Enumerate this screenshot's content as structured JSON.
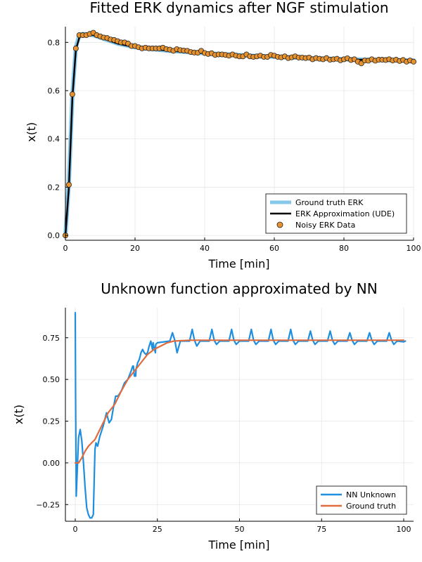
{
  "chart_data": [
    {
      "type": "line",
      "title": "Fitted ERK dynamics after NGF stimulation",
      "xlabel": "Time [min]",
      "ylabel": "x(t)",
      "xlim": [
        0,
        100
      ],
      "ylim": [
        -0.02,
        0.865
      ],
      "xticks": [
        0,
        20,
        40,
        60,
        80,
        100
      ],
      "yticks": [
        0.0,
        0.2,
        0.4,
        0.6,
        0.8
      ],
      "xtick_labels": [
        "0",
        "20",
        "40",
        "60",
        "80",
        "100"
      ],
      "ytick_labels": [
        "0.0",
        "0.2",
        "0.4",
        "0.6",
        "0.8"
      ],
      "grid": true,
      "legend_position": "bottom-right",
      "series": [
        {
          "name": "Ground truth ERK",
          "kind": "line",
          "color": "#87c8ea",
          "x": [
            0,
            1,
            2,
            3,
            4,
            5,
            6,
            8,
            10,
            12,
            15,
            20,
            25,
            30,
            40,
            50,
            60,
            70,
            80,
            90,
            100
          ],
          "y": [
            0.0,
            0.22,
            0.58,
            0.78,
            0.83,
            0.835,
            0.833,
            0.83,
            0.82,
            0.81,
            0.795,
            0.78,
            0.772,
            0.765,
            0.755,
            0.747,
            0.74,
            0.735,
            0.73,
            0.727,
            0.725
          ]
        },
        {
          "name": "ERK Approximation (UDE)",
          "kind": "line",
          "color": "#000000",
          "x": [
            0,
            1,
            2,
            3,
            4,
            5,
            6,
            8,
            10,
            12,
            15,
            20,
            25,
            30,
            40,
            50,
            60,
            70,
            80,
            90,
            100
          ],
          "y": [
            0.0,
            0.2,
            0.57,
            0.77,
            0.82,
            0.83,
            0.833,
            0.83,
            0.82,
            0.81,
            0.795,
            0.78,
            0.772,
            0.765,
            0.755,
            0.747,
            0.74,
            0.735,
            0.73,
            0.727,
            0.725
          ]
        },
        {
          "name": "Noisy ERK Data",
          "kind": "scatter",
          "color": "#e8922e",
          "x": [
            0,
            1,
            2,
            3,
            4,
            5,
            6,
            7,
            8,
            9,
            10,
            11,
            12,
            13,
            14,
            15,
            16,
            17,
            18,
            19,
            20,
            21,
            22,
            23,
            24,
            25,
            26,
            27,
            28,
            29,
            30,
            31,
            32,
            33,
            34,
            35,
            36,
            37,
            38,
            39,
            40,
            41,
            42,
            43,
            44,
            45,
            46,
            47,
            48,
            49,
            50,
            51,
            52,
            53,
            54,
            55,
            56,
            57,
            58,
            59,
            60,
            61,
            62,
            63,
            64,
            65,
            66,
            67,
            68,
            69,
            70,
            71,
            72,
            73,
            74,
            75,
            76,
            77,
            78,
            79,
            80,
            81,
            82,
            83,
            84,
            85,
            86,
            87,
            88,
            89,
            90,
            91,
            92,
            93,
            94,
            95,
            96,
            97,
            98,
            99,
            100
          ],
          "y": [
            0.0,
            0.21,
            0.585,
            0.775,
            0.83,
            0.83,
            0.83,
            0.835,
            0.84,
            0.83,
            0.825,
            0.82,
            0.818,
            0.812,
            0.81,
            0.805,
            0.8,
            0.8,
            0.795,
            0.785,
            0.785,
            0.78,
            0.775,
            0.778,
            0.775,
            0.775,
            0.775,
            0.775,
            0.778,
            0.772,
            0.77,
            0.765,
            0.772,
            0.768,
            0.766,
            0.765,
            0.76,
            0.758,
            0.757,
            0.765,
            0.756,
            0.752,
            0.755,
            0.748,
            0.75,
            0.75,
            0.748,
            0.745,
            0.75,
            0.745,
            0.742,
            0.742,
            0.75,
            0.742,
            0.74,
            0.742,
            0.745,
            0.74,
            0.74,
            0.748,
            0.745,
            0.74,
            0.738,
            0.742,
            0.735,
            0.738,
            0.742,
            0.737,
            0.737,
            0.735,
            0.737,
            0.73,
            0.735,
            0.732,
            0.73,
            0.735,
            0.728,
            0.73,
            0.732,
            0.726,
            0.73,
            0.734,
            0.727,
            0.73,
            0.72,
            0.713,
            0.725,
            0.724,
            0.73,
            0.724,
            0.728,
            0.728,
            0.727,
            0.73,
            0.725,
            0.728,
            0.723,
            0.727,
            0.72,
            0.725,
            0.72
          ]
        }
      ]
    },
    {
      "type": "line",
      "title": "Unknown function approximated by NN",
      "xlabel": "Time [min]",
      "ylabel": "x(t)",
      "xlim": [
        -3,
        103
      ],
      "ylim": [
        -0.35,
        0.93
      ],
      "xticks": [
        0,
        25,
        50,
        75,
        100
      ],
      "yticks": [
        -0.25,
        0.0,
        0.25,
        0.5,
        0.75
      ],
      "xtick_labels": [
        "0",
        "25",
        "50",
        "75",
        "100"
      ],
      "ytick_labels": [
        "−0.25",
        "0.00",
        "0.25",
        "0.50",
        "0.75"
      ],
      "grid": true,
      "legend_position": "bottom-right",
      "series": [
        {
          "name": "NN Unknown",
          "kind": "line",
          "color": "#1e8fe0",
          "x": [
            0,
            0.1,
            0.3,
            0.6,
            1,
            1.5,
            2,
            2.5,
            3,
            3.5,
            4,
            4.5,
            5,
            5.5,
            6,
            6.3,
            6.8,
            7.5,
            8.5,
            9.5,
            10.3,
            11,
            11.6,
            12.3,
            13,
            14,
            15,
            16,
            17,
            17.5,
            18,
            18.5,
            19,
            19.5,
            20,
            20.5,
            21,
            21.5,
            22,
            22.5,
            23,
            23.5,
            24,
            24.5,
            25,
            25.5,
            26,
            26.5,
            27,
            27.5,
            28,
            28.5,
            29,
            29.3,
            29.6,
            30,
            30.5,
            31,
            31.5,
            32,
            32.5,
            33,
            33.5,
            34,
            34.5,
            35,
            35.5,
            36,
            36.5,
            37,
            37.5,
            38,
            38.5,
            39,
            39.5,
            40,
            40.5,
            41,
            41.5,
            42,
            42.5,
            43,
            43.5,
            44,
            44.5,
            45,
            45.5,
            46,
            46.5,
            47,
            47.5,
            48,
            48.5,
            49,
            49.5,
            50,
            50.5,
            51,
            51.5,
            52,
            52.5,
            53,
            53.5,
            54,
            54.5,
            55,
            55.5,
            56,
            56.5,
            57,
            57.5,
            58,
            58.5,
            59,
            59.5,
            60,
            60.5,
            61,
            61.5,
            62,
            62.5,
            63,
            63.5,
            64,
            64.5,
            65,
            65.5,
            66,
            66.5,
            67,
            67.5,
            68,
            68.5,
            69,
            69.5,
            70,
            70.5,
            71,
            71.5,
            72,
            72.5,
            73,
            73.5,
            74,
            74.5,
            75,
            75.5,
            76,
            76.5,
            77,
            77.5,
            78,
            78.5,
            79,
            79.5,
            80,
            80.5,
            81,
            81.5,
            82,
            82.5,
            83,
            83.5,
            84,
            84.5,
            85,
            85.5,
            86,
            86.5,
            87,
            87.5,
            88,
            88.5,
            89,
            89.5,
            90,
            90.5,
            91,
            91.5,
            92,
            92.5,
            93,
            93.5,
            94,
            94.5,
            95,
            95.5,
            96,
            96.5,
            97,
            97.5,
            98,
            98.5,
            99,
            99.5,
            100
          ],
          "y": [
            0.9,
            0.4,
            -0.2,
            -0.05,
            0.15,
            0.2,
            0.13,
            0.0,
            -0.15,
            -0.27,
            -0.31,
            -0.33,
            -0.33,
            -0.31,
            0.08,
            0.12,
            0.1,
            0.16,
            0.22,
            0.3,
            0.24,
            0.26,
            0.33,
            0.4,
            0.4,
            0.43,
            0.48,
            0.5,
            0.55,
            0.58,
            0.52,
            0.56,
            0.6,
            0.62,
            0.66,
            0.68,
            0.66,
            0.65,
            0.66,
            0.7,
            0.73,
            0.68,
            0.69,
            0.71,
            0.72,
            0.73,
            0.735,
            0.74,
            0.73,
            0.7,
            0.66,
            0.67,
            0.7,
            0.74,
            0.78,
            0.76,
            0.73,
            0.72,
            0.72,
            0.73,
            0.735,
            0.74,
            0.73,
            0.72,
            0.71,
            0.73,
            0.79,
            0.75,
            0.73,
            0.72,
            0.73,
            0.74,
            0.735,
            0.73,
            0.725,
            0.73,
            0.74,
            0.73,
            0.72,
            0.73,
            0.74,
            0.735,
            0.73,
            0.73,
            0.73,
            0.73,
            0.735,
            0.73,
            0.735,
            0.73,
            0.73,
            0.73,
            0.735,
            0.73,
            0.73,
            0.73,
            0.735,
            0.73,
            0.73,
            0.735,
            0.73,
            0.73,
            0.73,
            0.735,
            0.73,
            0.73,
            0.73,
            0.73,
            0.73,
            0.735,
            0.73,
            0.73,
            0.73,
            0.73,
            0.735,
            0.73,
            0.73,
            0.73,
            0.73,
            0.73,
            0.73,
            0.73,
            0.73,
            0.73,
            0.73,
            0.73,
            0.73,
            0.735,
            0.73,
            0.73,
            0.73,
            0.73,
            0.73,
            0.73,
            0.73,
            0.73,
            0.73,
            0.73,
            0.735,
            0.73,
            0.73,
            0.73,
            0.73,
            0.73,
            0.73,
            0.73,
            0.73,
            0.73,
            0.73,
            0.73,
            0.73,
            0.73,
            0.73,
            0.73,
            0.73,
            0.73,
            0.73,
            0.73,
            0.73,
            0.73,
            0.73,
            0.73,
            0.73,
            0.73,
            0.73,
            0.73,
            0.73,
            0.73,
            0.73,
            0.73,
            0.73,
            0.73,
            0.73,
            0.73,
            0.73,
            0.73,
            0.73,
            0.73,
            0.73,
            0.73,
            0.73,
            0.73,
            0.73,
            0.73,
            0.73,
            0.73,
            0.73,
            0.73,
            0.73,
            0.73,
            0.73,
            0.73,
            0.73,
            0.73,
            0.73,
            0.73
          ],
          "spikes": [
            {
              "x": 36.0,
              "y": 0.8,
              "trough": 0.7
            },
            {
              "x": 42.0,
              "y": 0.8,
              "trough": 0.71
            },
            {
              "x": 48.0,
              "y": 0.8,
              "trough": 0.71
            },
            {
              "x": 54.0,
              "y": 0.8,
              "trough": 0.71
            },
            {
              "x": 60.0,
              "y": 0.8,
              "trough": 0.71
            },
            {
              "x": 66.0,
              "y": 0.8,
              "trough": 0.71
            },
            {
              "x": 72.0,
              "y": 0.79,
              "trough": 0.71
            },
            {
              "x": 78.0,
              "y": 0.79,
              "trough": 0.71
            },
            {
              "x": 84.0,
              "y": 0.78,
              "trough": 0.71
            },
            {
              "x": 90.0,
              "y": 0.78,
              "trough": 0.71
            },
            {
              "x": 96.0,
              "y": 0.78,
              "trough": 0.71
            },
            {
              "x": 30.0,
              "y": 0.78,
              "trough": 0.66
            },
            {
              "x": 24.0,
              "y": 0.72,
              "trough": 0.66
            },
            {
              "x": 18.0,
              "y": 0.58,
              "trough": 0.52
            }
          ]
        },
        {
          "name": "Ground truth",
          "kind": "line",
          "color": "#e06b3d",
          "x": [
            0,
            1,
            2,
            3,
            4,
            5,
            6,
            8,
            10,
            12,
            14,
            16,
            18,
            20,
            22,
            24,
            26,
            28,
            30,
            35,
            40,
            50,
            60,
            70,
            80,
            90,
            100
          ],
          "y": [
            0.0,
            0.0,
            0.03,
            0.07,
            0.1,
            0.12,
            0.14,
            0.22,
            0.3,
            0.35,
            0.43,
            0.5,
            0.55,
            0.6,
            0.65,
            0.68,
            0.7,
            0.72,
            0.73,
            0.735,
            0.735,
            0.735,
            0.735,
            0.735,
            0.735,
            0.735,
            0.735
          ]
        }
      ]
    }
  ]
}
